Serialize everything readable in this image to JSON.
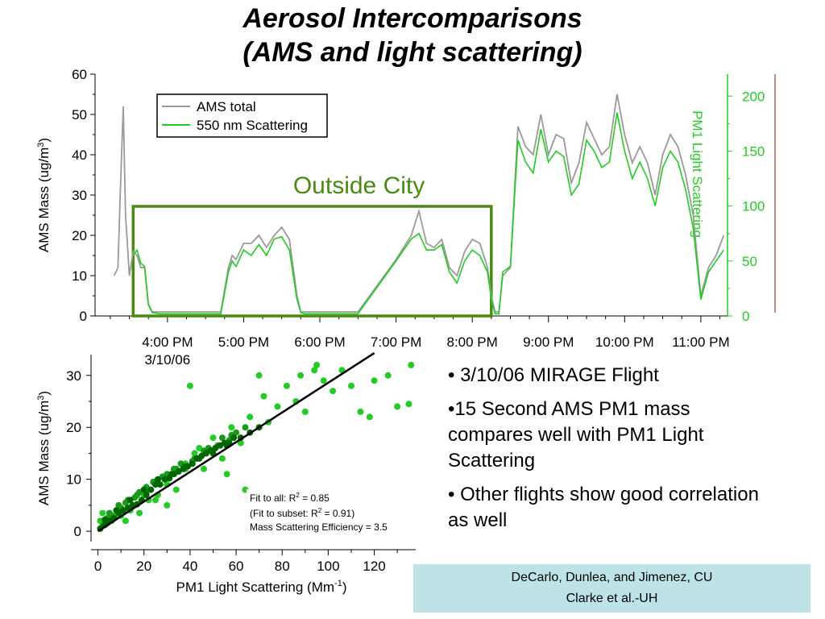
{
  "slide": {
    "title_line1": "Aerosol Intercomparisons",
    "title_line2": "(AMS and light scattering)",
    "bullets": [
      "• 3/10/06 MIRAGE Flight",
      "•15 Second AMS PM1 mass compares well with PM1 Light Scattering",
      "• Other flights show good correlation as well"
    ],
    "credits": [
      "DeCarlo, Dunlea, and Jimenez, CU",
      "Clarke et al.-UH"
    ]
  },
  "colors": {
    "ams_gray": "#9a9a9a",
    "scatter_green": "#22cc22",
    "box_green": "#4a8a10",
    "fit_line": "#000000",
    "dark_green": "#006600",
    "mid_green": "#1a9a1a",
    "light_green": "#22cc22"
  },
  "chart_data": [
    {
      "type": "line",
      "annotation": "Outside City",
      "xlabel": "",
      "x_tick_labels": [
        "4:00 PM",
        "5:00 PM",
        "6:00 PM",
        "7:00 PM",
        "8:00 PM",
        "9:00 PM",
        "10:00 PM",
        "11:00 PM"
      ],
      "x_tick_hours": [
        16,
        17,
        18,
        19,
        20,
        21,
        22,
        23
      ],
      "x_sublabel": "3/10/06",
      "xlim_hours": [
        15.05,
        23.35
      ],
      "ylabel_left": "AMS Mass (ug/m3)",
      "ylim_left": [
        0,
        60
      ],
      "yticks_left": [
        0,
        10,
        20,
        30,
        40,
        50,
        60
      ],
      "ylabel_right": "PM1 Light Scattering",
      "ylim_right": [
        0,
        220
      ],
      "yticks_right": [
        0,
        50,
        100,
        150,
        200
      ],
      "outside_city_box_hours": [
        15.55,
        20.25
      ],
      "legend": {
        "position": "top-left",
        "entries": [
          "AMS total",
          "550 nm Scattering"
        ]
      },
      "series": [
        {
          "name": "AMS total",
          "axis": "left",
          "x": [
            15.3,
            15.35,
            15.38,
            15.42,
            15.45,
            15.5,
            15.55,
            15.6,
            15.65,
            15.7,
            15.75,
            15.8,
            15.9,
            16.0,
            16.2,
            16.5,
            16.7,
            16.8,
            16.85,
            16.9,
            17.0,
            17.1,
            17.2,
            17.3,
            17.4,
            17.5,
            17.6,
            17.7,
            17.75,
            17.8,
            17.9,
            18.0,
            18.1,
            18.2,
            18.3,
            18.5,
            19.0,
            19.2,
            19.3,
            19.4,
            19.5,
            19.6,
            19.7,
            19.8,
            19.9,
            20.0,
            20.1,
            20.2,
            20.25,
            20.3,
            20.35,
            20.4,
            20.5,
            20.6,
            20.7,
            20.8,
            20.9,
            21.0,
            21.1,
            21.2,
            21.3,
            21.4,
            21.5,
            21.6,
            21.7,
            21.8,
            21.9,
            22.0,
            22.1,
            22.2,
            22.3,
            22.4,
            22.5,
            22.6,
            22.7,
            22.8,
            22.9,
            23.0,
            23.1,
            23.2,
            23.3
          ],
          "y": [
            10,
            12,
            30,
            52,
            25,
            10,
            16,
            15,
            12,
            12,
            3,
            1,
            1,
            1,
            1,
            1,
            1,
            12,
            15,
            14,
            18,
            18,
            20,
            17,
            20,
            22,
            19,
            5,
            1,
            1,
            1,
            1,
            1,
            1,
            1,
            1,
            14,
            20,
            26,
            18,
            17,
            19,
            12,
            10,
            16,
            19,
            18,
            12,
            5,
            1,
            1,
            10,
            12,
            47,
            42,
            40,
            50,
            40,
            45,
            44,
            33,
            38,
            48,
            44,
            40,
            42,
            55,
            45,
            38,
            42,
            38,
            30,
            40,
            45,
            42,
            35,
            25,
            5,
            12,
            15,
            20
          ]
        },
        {
          "name": "550 nm Scattering",
          "axis": "right",
          "x": [
            15.55,
            15.6,
            15.65,
            15.7,
            15.75,
            15.8,
            15.9,
            16.0,
            16.2,
            16.5,
            16.7,
            16.8,
            16.85,
            16.9,
            17.0,
            17.1,
            17.2,
            17.3,
            17.4,
            17.5,
            17.6,
            17.7,
            17.75,
            17.8,
            17.9,
            18.0,
            18.1,
            18.2,
            18.3,
            18.5,
            19.0,
            19.2,
            19.3,
            19.4,
            19.5,
            19.6,
            19.7,
            19.8,
            19.9,
            20.0,
            20.1,
            20.2,
            20.25,
            20.3,
            20.35,
            20.4,
            20.5,
            20.6,
            20.7,
            20.8,
            20.9,
            21.0,
            21.1,
            21.2,
            21.3,
            21.4,
            21.5,
            21.6,
            21.7,
            21.8,
            21.9,
            22.0,
            22.1,
            22.2,
            22.3,
            22.4,
            22.5,
            22.6,
            22.7,
            22.8,
            22.9,
            23.0,
            23.1,
            23.2,
            23.3
          ],
          "y": [
            55,
            60,
            48,
            45,
            10,
            3,
            2,
            2,
            2,
            2,
            2,
            40,
            50,
            45,
            60,
            55,
            65,
            55,
            70,
            72,
            60,
            15,
            3,
            2,
            2,
            2,
            2,
            2,
            2,
            2,
            50,
            70,
            75,
            60,
            60,
            65,
            40,
            30,
            50,
            60,
            55,
            40,
            15,
            2,
            2,
            40,
            45,
            160,
            140,
            130,
            170,
            140,
            150,
            145,
            110,
            120,
            160,
            150,
            135,
            140,
            185,
            150,
            125,
            140,
            125,
            100,
            135,
            150,
            140,
            115,
            80,
            15,
            40,
            50,
            60
          ]
        }
      ]
    },
    {
      "type": "scatter",
      "xlabel": "PM1 Light Scattering (Mm-1)",
      "ylabel": "AMS Mass (ug/m3)",
      "xlim": [
        -3,
        138
      ],
      "ylim": [
        -2,
        34
      ],
      "xticks": [
        0,
        20,
        40,
        60,
        80,
        100,
        120
      ],
      "yticks": [
        0,
        10,
        20,
        30
      ],
      "fit_text": [
        "Fit to all: R2 = 0.85",
        "(Fit to subset: R2 = 0.91)",
        "Mass Scattering Efficiency = 3.5"
      ],
      "fit_line": {
        "x": [
          0,
          120
        ],
        "y": [
          0,
          34.3
        ]
      },
      "series": [
        {
          "name": "",
          "color": "dark",
          "x": [
            1,
            3,
            5,
            7,
            9,
            11,
            13,
            15,
            17,
            19,
            21,
            23,
            25,
            27,
            29,
            31,
            33,
            35,
            37,
            39,
            41,
            43,
            45,
            47,
            49,
            51,
            53,
            55,
            57,
            59,
            3,
            8,
            14,
            20,
            26,
            32,
            38,
            44,
            50,
            56,
            62,
            66,
            70
          ],
          "y": [
            0.5,
            1.2,
            2,
            2.5,
            3.5,
            4,
            4.5,
            5,
            5.2,
            6,
            7,
            8,
            9,
            9,
            10,
            10.2,
            11,
            11.5,
            12,
            12.5,
            13,
            14,
            14.5,
            15,
            15.5,
            16,
            16.5,
            17,
            17,
            18,
            2.2,
            4,
            6,
            8,
            10,
            11,
            12.5,
            14,
            15,
            16.5,
            18,
            19,
            20
          ]
        },
        {
          "name": "",
          "color": "mid",
          "x": [
            2,
            4,
            6,
            8,
            10,
            12,
            16,
            18,
            22,
            24,
            28,
            30,
            34,
            36,
            42,
            46,
            48,
            52,
            54,
            58,
            60,
            64,
            5,
            9,
            13,
            17,
            21,
            25,
            33,
            41,
            49,
            57
          ],
          "y": [
            1,
            2.5,
            3,
            4,
            4.5,
            5.5,
            6.5,
            7.5,
            8,
            9.5,
            10.5,
            11,
            12,
            13,
            14,
            15.5,
            16,
            16.5,
            18,
            18.5,
            19,
            20,
            3.5,
            5,
            6,
            7,
            8.5,
            9.5,
            12,
            13.5,
            15.5,
            17.5
          ]
        },
        {
          "name": "",
          "color": "light",
          "x": [
            1,
            2,
            4,
            6,
            10,
            14,
            18,
            22,
            26,
            30,
            34,
            38,
            40,
            44,
            46,
            50,
            54,
            58,
            62,
            66,
            70,
            74,
            78,
            82,
            86,
            90,
            94,
            98,
            102,
            106,
            110,
            114,
            118,
            120,
            126,
            130,
            136,
            135,
            95,
            88,
            72,
            64,
            56,
            42,
            38,
            30,
            25,
            20,
            12,
            8
          ],
          "y": [
            2,
            3.5,
            1.5,
            2,
            3,
            4,
            3.5,
            6,
            7,
            9,
            8,
            12,
            28,
            16,
            12,
            18,
            14,
            20,
            17,
            22,
            30,
            21,
            24,
            28,
            25,
            23,
            31,
            29,
            27,
            31,
            28,
            23,
            22,
            29,
            30,
            24,
            32,
            24.5,
            32,
            30,
            26,
            8,
            11,
            15,
            13,
            5,
            6,
            7,
            2,
            3
          ]
        }
      ]
    }
  ]
}
